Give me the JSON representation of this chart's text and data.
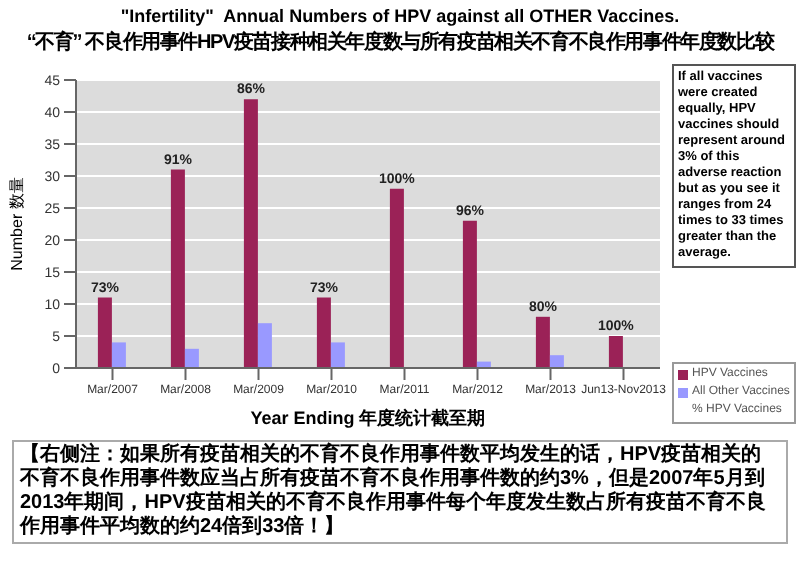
{
  "chart_data": {
    "type": "bar",
    "title": "\"Infertility\"  Annual Numbers of HPV against all OTHER Vaccines.",
    "subtitle": "“不育” 不良作用事件HPV疫苗接种相关年度数与所有疫苗相关不育不良作用事件年度数比较",
    "xlabel": "Year Ending  年度统计截至期",
    "ylabel": "Number  数量",
    "categories": [
      "Mar/2007",
      "Mar/2008",
      "Mar/2009",
      "Mar/2010",
      "Mar/2011",
      "Mar/2012",
      "Mar/2013",
      "Jun13-Nov2013"
    ],
    "series": [
      {
        "name": "HPV Vaccines",
        "color": "#9b2257",
        "values": [
          11,
          31,
          42,
          11,
          28,
          23,
          8,
          5
        ]
      },
      {
        "name": "All Other Vaccines",
        "color": "#9999ff",
        "values": [
          4,
          3,
          7,
          4,
          0,
          1,
          2,
          0
        ]
      }
    ],
    "ylim": [
      0,
      45
    ],
    "yticks": [
      0,
      5,
      10,
      15,
      20,
      25,
      30,
      35,
      40,
      45
    ],
    "grid": "y",
    "legend": "right",
    "annotations": [
      {
        "text": "73%",
        "x": "Mar/2007",
        "y": 11
      },
      {
        "text": "91%",
        "x": "Mar/2008",
        "y": 31
      },
      {
        "text": "86%",
        "x": "Mar/2009",
        "y": 42
      },
      {
        "text": "73%",
        "x": "Mar/2010",
        "y": 11
      },
      {
        "text": "100%",
        "x": "Mar/2011",
        "y": 28
      },
      {
        "text": "96%",
        "x": "Mar/2012",
        "y": 23
      },
      {
        "text": "80%",
        "x": "Mar/2013",
        "y": 8
      },
      {
        "text": "100%",
        "x": "Jun13-Nov2013",
        "y": 5
      },
      "If all vaccines were created equally, HPV vaccines should represent around 3% of this adverse reaction but as you see it ranges from 24 times to 33 times greater than the average.",
      "% HPV Vaccines",
      "【右侧注：如果所有疫苗相关的不育不良作用事件数平均发生的话，HPV疫苗相关的不育不良作用事件数应当占所有疫苗不育不良作用事件数的约3%，但是2007年5月到2013年期间，HPV疫苗相关的不育不良作用事件每个年度发生数占所有疫苗不育不良作用事件平均数的约24倍到33倍！】"
    ]
  }
}
